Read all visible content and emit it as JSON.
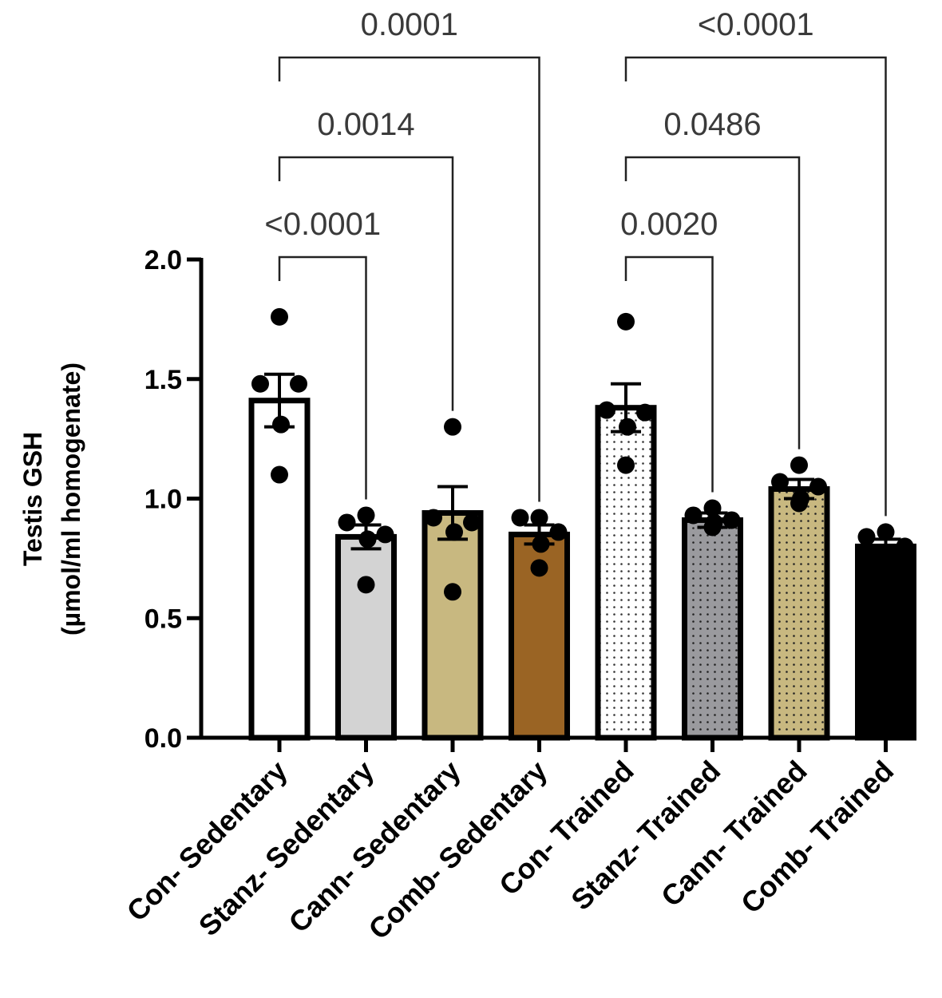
{
  "chart_data": {
    "type": "bar",
    "title": "",
    "xlabel": "",
    "ylabel_line1": "Testis GSH",
    "ylabel_line2": "(µmol/ml homogenate)",
    "ylim": [
      0,
      2.0
    ],
    "yticks": [
      0.0,
      0.5,
      1.0,
      1.5,
      2.0
    ],
    "ytick_labels": [
      "0.0",
      "0.5",
      "1.0",
      "1.5",
      "2.0"
    ],
    "categories": [
      "Con- Sedentary",
      "Stanz- Sedentary",
      "Cann- Sedentary",
      "Comb- Sedentary",
      "Con- Trained",
      "Stanz- Trained",
      "Cann- Trained",
      "Comb- Trained"
    ],
    "values": [
      1.41,
      0.84,
      0.94,
      0.85,
      1.38,
      0.91,
      1.04,
      0.8
    ],
    "sem": [
      0.11,
      0.05,
      0.11,
      0.04,
      0.1,
      0.03,
      0.04,
      0.03
    ],
    "points": [
      [
        1.76,
        1.48,
        1.48,
        1.31,
        1.1
      ],
      [
        0.93,
        0.9,
        0.85,
        0.83,
        0.64
      ],
      [
        1.3,
        0.92,
        0.9,
        0.86,
        0.61
      ],
      [
        0.92,
        0.92,
        0.86,
        0.81,
        0.71
      ],
      [
        1.74,
        1.37,
        1.36,
        1.3,
        1.14
      ],
      [
        0.96,
        0.93,
        0.91,
        0.9,
        0.88
      ],
      [
        1.14,
        1.07,
        1.05,
        1.0,
        0.98
      ],
      [
        0.86,
        0.84,
        0.8,
        0.76,
        0.73
      ]
    ],
    "fills": [
      {
        "color": "#ffffff",
        "pattern": "none"
      },
      {
        "color": "#d3d3d3",
        "pattern": "none"
      },
      {
        "color": "#c8b880",
        "pattern": "none"
      },
      {
        "color": "#9a6424",
        "pattern": "none"
      },
      {
        "color": "#ffffff",
        "pattern": "dots"
      },
      {
        "color": "#9a9a9e",
        "pattern": "dots"
      },
      {
        "color": "#c8b880",
        "pattern": "dots"
      },
      {
        "color": "#000000",
        "pattern": "none"
      }
    ],
    "comparisons": [
      {
        "from": 0,
        "to": 1,
        "level": 1,
        "p": "<0.0001"
      },
      {
        "from": 0,
        "to": 2,
        "level": 2,
        "p": "0.0014"
      },
      {
        "from": 0,
        "to": 3,
        "level": 3,
        "p": "0.0001"
      },
      {
        "from": 4,
        "to": 5,
        "level": 1,
        "p": "0.0020"
      },
      {
        "from": 4,
        "to": 6,
        "level": 2,
        "p": "0.0486"
      },
      {
        "from": 4,
        "to": 7,
        "level": 3,
        "p": "<0.0001"
      }
    ]
  }
}
